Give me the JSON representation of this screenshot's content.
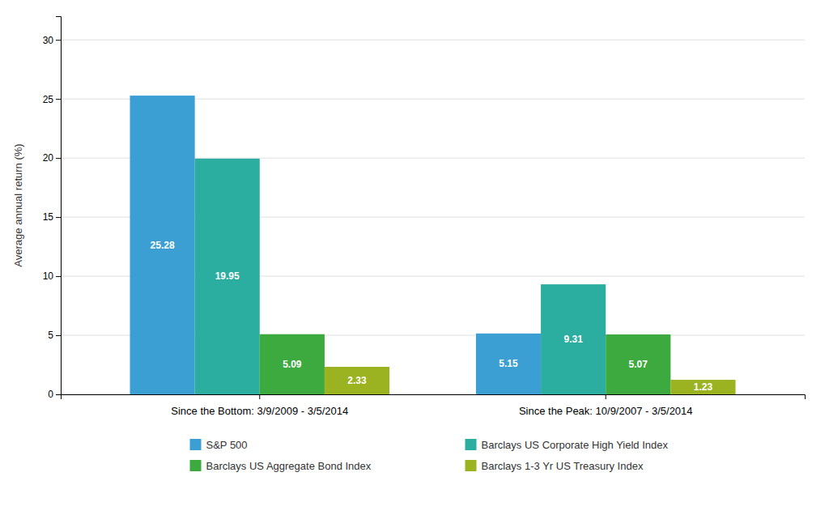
{
  "chart_data": {
    "type": "bar",
    "categories": [
      "Since the Bottom: 3/9/2009 - 3/5/2014",
      "Since the Peak: 10/9/2007 - 3/5/2014"
    ],
    "series": [
      {
        "name": "S&P 500",
        "color": "#3B9FD4",
        "values": [
          25.28,
          5.15
        ]
      },
      {
        "name": "Barclays US Corporate High Yield Index",
        "color": "#2BADA0",
        "values": [
          19.95,
          9.31
        ]
      },
      {
        "name": "Barclays US Aggregate Bond Index",
        "color": "#3DAA3F",
        "values": [
          5.09,
          5.07
        ]
      },
      {
        "name": "Barclays 1-3 Yr US Treasury Index",
        "color": "#9BB320",
        "values": [
          2.33,
          1.23
        ]
      }
    ],
    "ylabel": "Average annual return (%)",
    "ylim": [
      0,
      32
    ],
    "yticks": [
      0,
      5,
      10,
      15,
      20,
      25,
      30
    ],
    "grid": true,
    "legend": "bottom",
    "data_labels": true
  }
}
